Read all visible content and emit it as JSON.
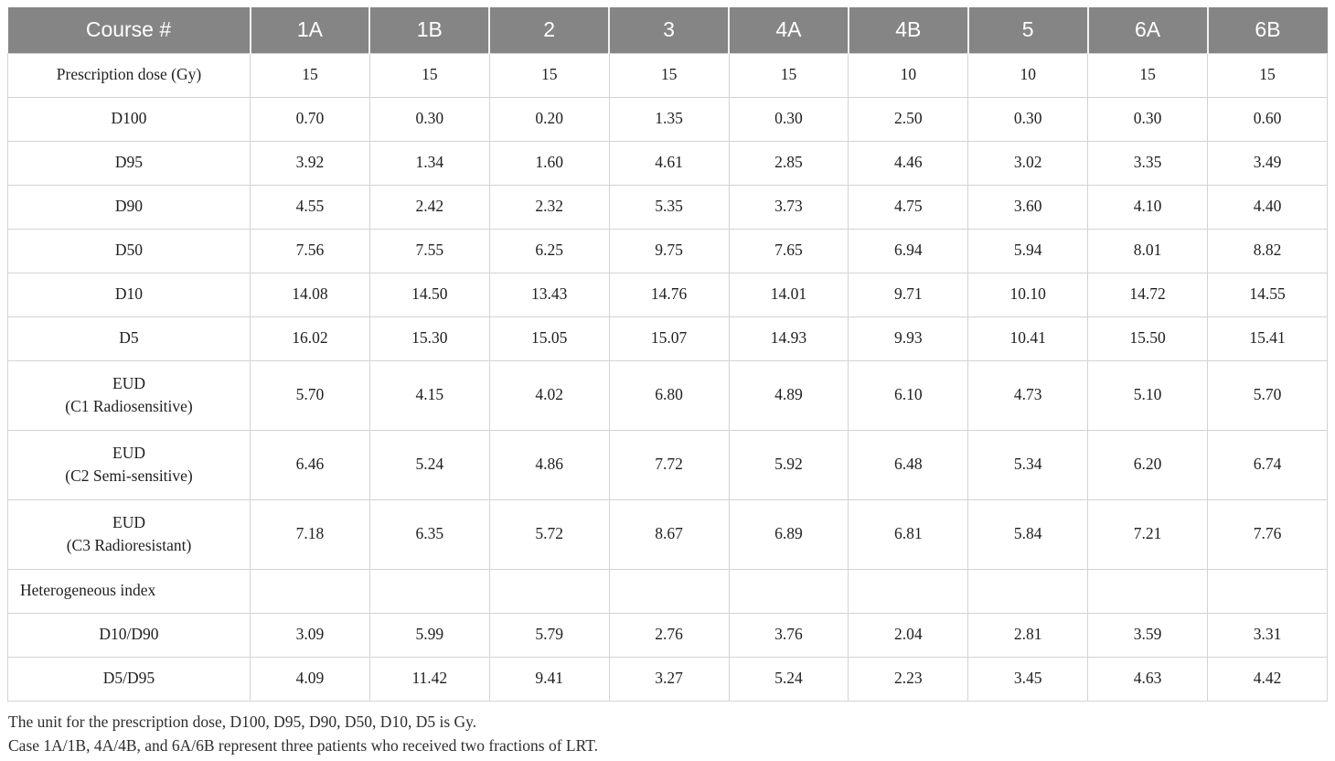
{
  "colors": {
    "header_bg": "#858585",
    "header_fg": "#ffffff",
    "grid_line": "#d3d3d3"
  },
  "chart_data": {
    "type": "table",
    "title": "",
    "columns": [
      "Course #",
      "1A",
      "1B",
      "2",
      "3",
      "4A",
      "4B",
      "5",
      "6A",
      "6B"
    ],
    "rows": [
      {
        "label": "Prescription dose (Gy)",
        "values": [
          "15",
          "15",
          "15",
          "15",
          "15",
          "10",
          "10",
          "15",
          "15"
        ]
      },
      {
        "label": "D100",
        "values": [
          "0.70",
          "0.30",
          "0.20",
          "1.35",
          "0.30",
          "2.50",
          "0.30",
          "0.30",
          "0.60"
        ]
      },
      {
        "label": "D95",
        "values": [
          "3.92",
          "1.34",
          "1.60",
          "4.61",
          "2.85",
          "4.46",
          "3.02",
          "3.35",
          "3.49"
        ]
      },
      {
        "label": "D90",
        "values": [
          "4.55",
          "2.42",
          "2.32",
          "5.35",
          "3.73",
          "4.75",
          "3.60",
          "4.10",
          "4.40"
        ]
      },
      {
        "label": "D50",
        "values": [
          "7.56",
          "7.55",
          "6.25",
          "9.75",
          "7.65",
          "6.94",
          "5.94",
          "8.01",
          "8.82"
        ]
      },
      {
        "label": "D10",
        "values": [
          "14.08",
          "14.50",
          "13.43",
          "14.76",
          "14.01",
          "9.71",
          "10.10",
          "14.72",
          "14.55"
        ]
      },
      {
        "label": "D5",
        "values": [
          "16.02",
          "15.30",
          "15.05",
          "15.07",
          "14.93",
          "9.93",
          "10.41",
          "15.50",
          "15.41"
        ]
      },
      {
        "label": "EUD\n(C1 Radiosensitive)",
        "values": [
          "5.70",
          "4.15",
          "4.02",
          "6.80",
          "4.89",
          "6.10",
          "4.73",
          "5.10",
          "5.70"
        ]
      },
      {
        "label": "EUD\n(C2 Semi-sensitive)",
        "values": [
          "6.46",
          "5.24",
          "4.86",
          "7.72",
          "5.92",
          "6.48",
          "5.34",
          "6.20",
          "6.74"
        ]
      },
      {
        "label": "EUD\n(C3 Radioresistant)",
        "values": [
          "7.18",
          "6.35",
          "5.72",
          "8.67",
          "6.89",
          "6.81",
          "5.84",
          "7.21",
          "7.76"
        ]
      },
      {
        "label": "Heterogeneous index",
        "values": [
          "",
          "",
          "",
          "",
          "",
          "",
          "",
          "",
          ""
        ]
      },
      {
        "label": "D10/D90",
        "values": [
          "3.09",
          "5.99",
          "5.79",
          "2.76",
          "3.76",
          "2.04",
          "2.81",
          "3.59",
          "3.31"
        ]
      },
      {
        "label": "D5/D95",
        "values": [
          "4.09",
          "11.42",
          "9.41",
          "3.27",
          "5.24",
          "2.23",
          "3.45",
          "4.63",
          "4.42"
        ]
      }
    ]
  },
  "footnotes": {
    "line1": "The unit for the prescription dose, D100, D95, D90, D50, D10, D5 is Gy.",
    "line2": "Case 1A/1B, 4A/4B, and 6A/6B represent three patients who received two fractions of LRT."
  }
}
